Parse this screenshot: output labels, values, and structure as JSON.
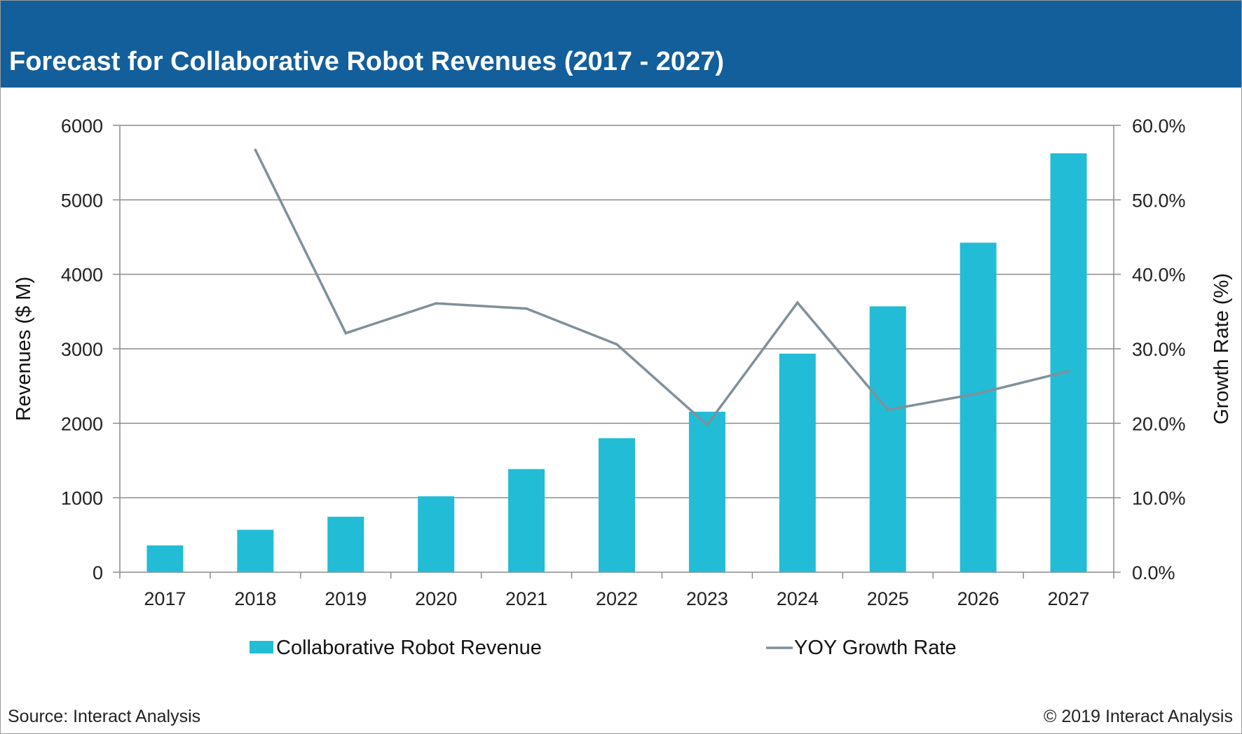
{
  "header": {
    "title": "Forecast for Collaborative Robot Revenues (2017 - 2027)"
  },
  "footer": {
    "source": "Source: Interact Analysis",
    "copyright": "© 2019 Interact Analysis"
  },
  "colors": {
    "header_bg": "#135f9b",
    "bar": "#22bcd6",
    "line": "#7f919a",
    "grid": "#8c8c8c"
  },
  "chart_data": {
    "type": "bar",
    "title": "",
    "categories": [
      "2017",
      "2018",
      "2019",
      "2020",
      "2021",
      "2022",
      "2023",
      "2024",
      "2025",
      "2026",
      "2027"
    ],
    "series": [
      {
        "name": "Collaborative Robot Revenue",
        "type": "bar",
        "axis": "left",
        "values": [
          360,
          570,
          745,
          1020,
          1385,
          1800,
          2155,
          2935,
          3570,
          4425,
          5625
        ]
      },
      {
        "name": "YOY Growth Rate",
        "type": "line",
        "axis": "right",
        "values": [
          null,
          56.7,
          32.1,
          36.1,
          35.4,
          30.6,
          19.8,
          36.2,
          21.8,
          24.0,
          27.0
        ]
      }
    ],
    "ylabel": "Revenues ($ M)",
    "ylabel_right": "Growth Rate (%)",
    "ylim": [
      0,
      6000
    ],
    "ylim_right": [
      0,
      60
    ],
    "yticks": [
      "0",
      "1000",
      "2000",
      "3000",
      "4000",
      "5000",
      "6000"
    ],
    "yticks_right": [
      "0.0%",
      "10.0%",
      "20.0%",
      "30.0%",
      "40.0%",
      "50.0%",
      "60.0%"
    ],
    "grid": true,
    "legend_position": "bottom"
  }
}
